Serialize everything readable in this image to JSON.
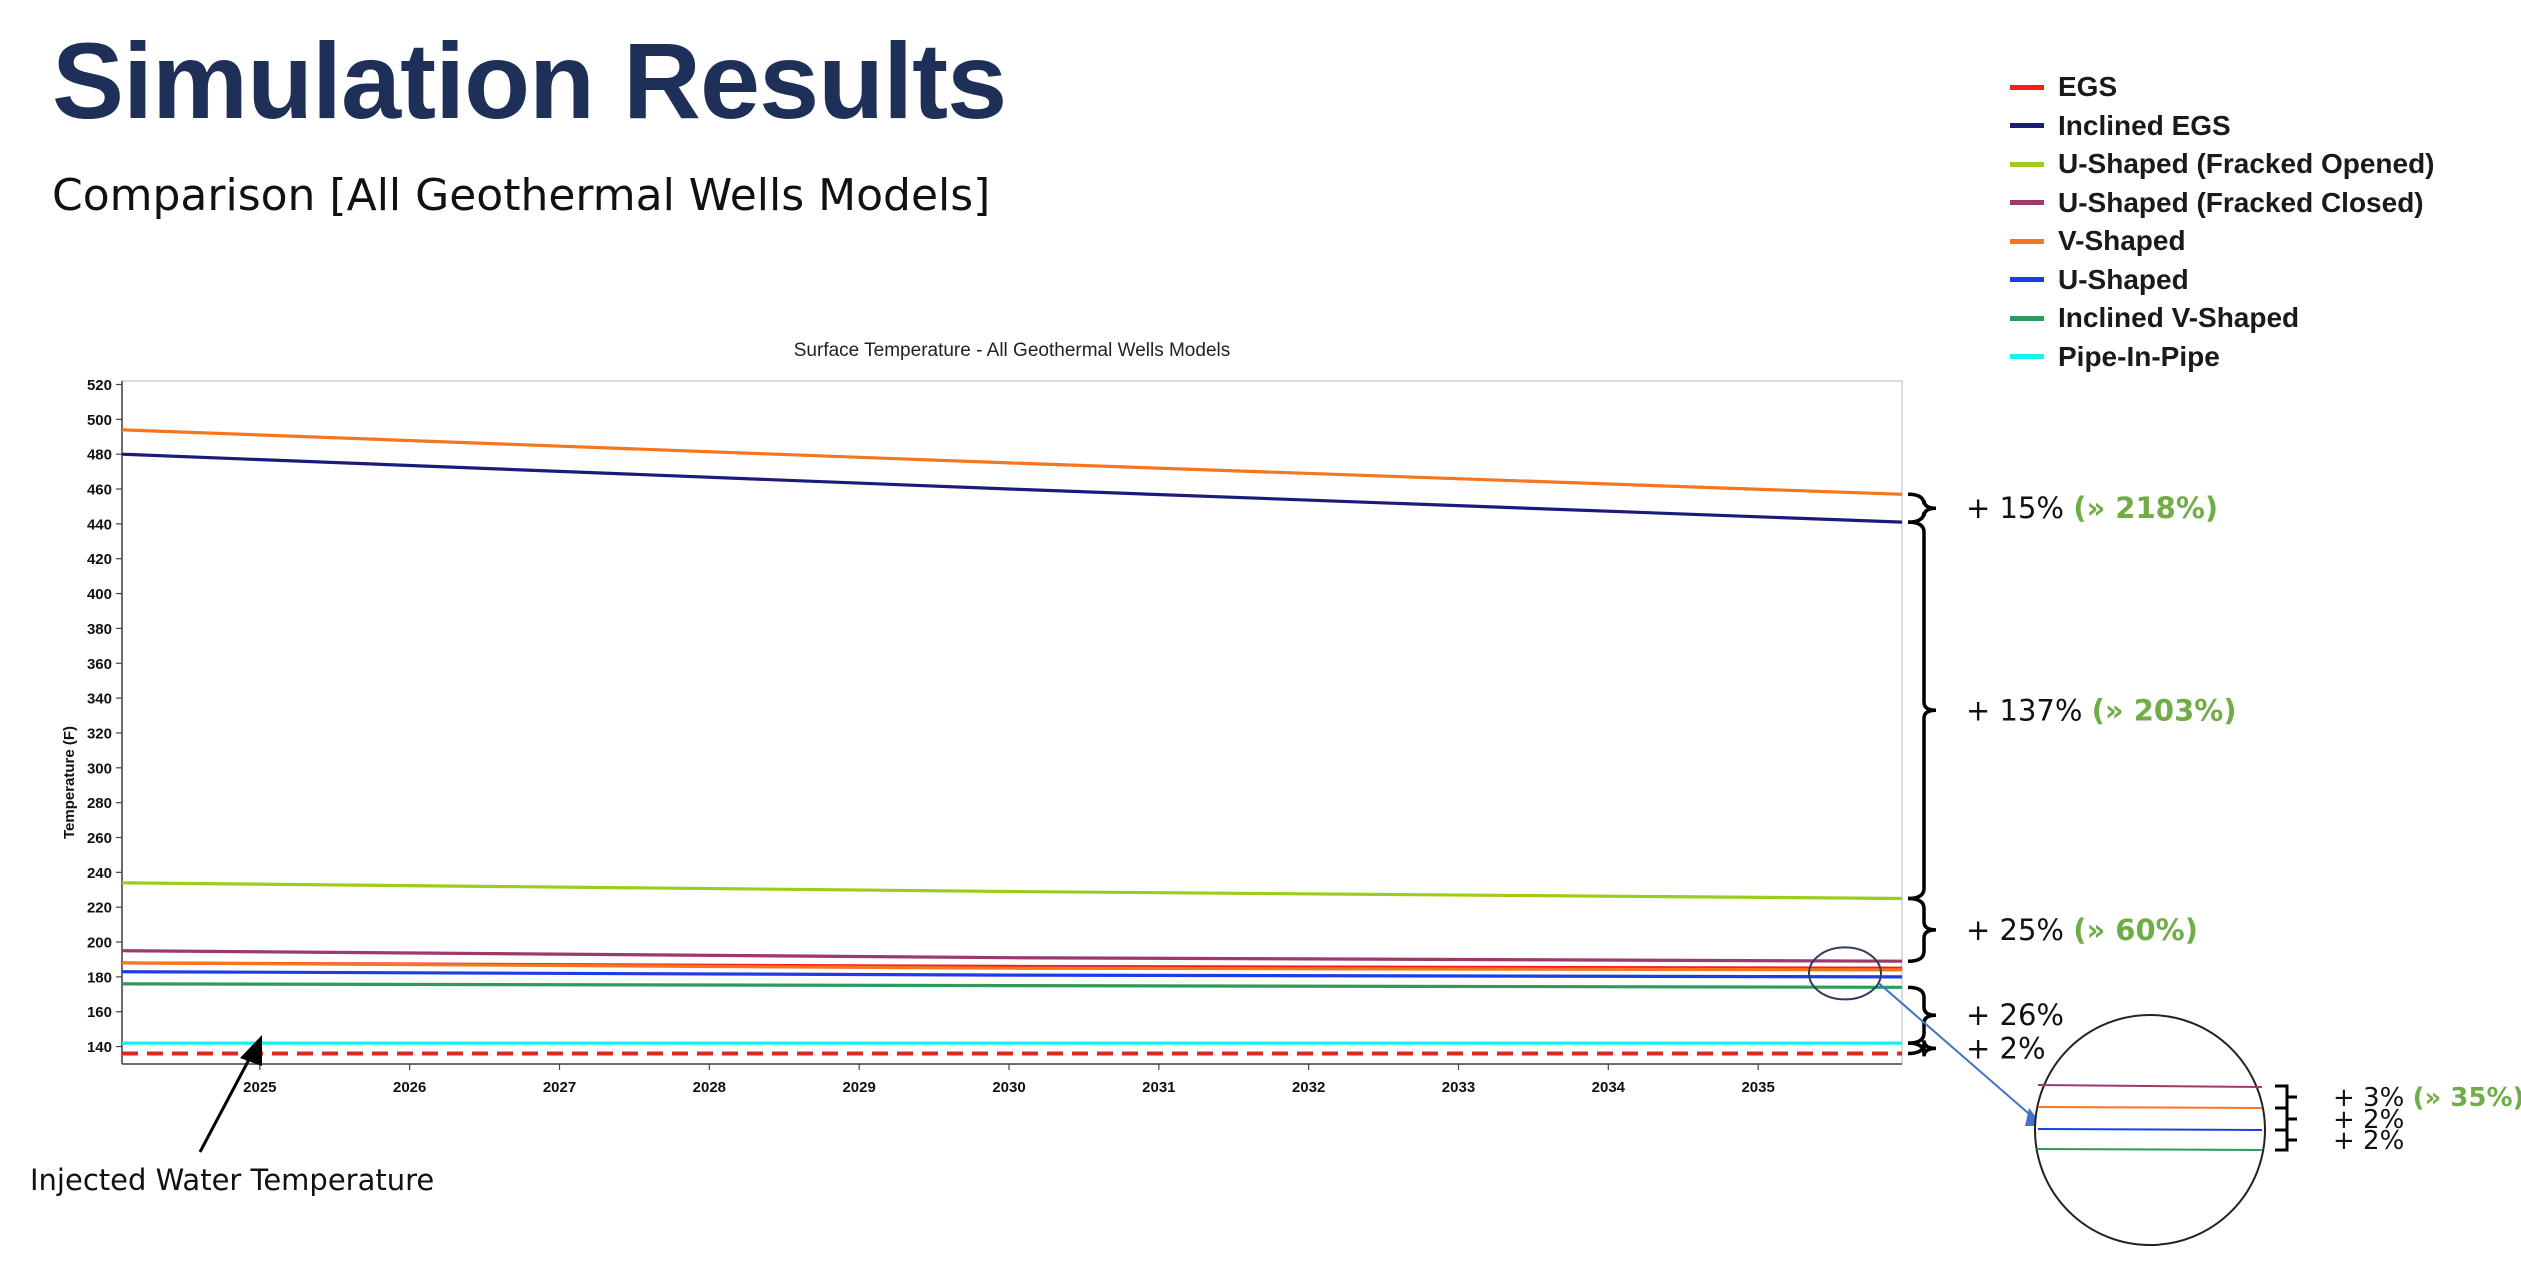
{
  "slide": {
    "title": "Simulation Results",
    "subtitle": "Comparison [All Geothermal Wells Models]"
  },
  "colors": {
    "title": "#1f3058",
    "annotation_green": "#70ad47",
    "EGS": "#ff1a1a",
    "Inclined EGS": "#1b1b7a",
    "U-Shaped (Fracked Opened)": "#9ccc1c",
    "U-Shaped (Fracked Closed)": "#9c3a6e",
    "V-Shaped": "#f5761f",
    "U-Shaped": "#1e3ce6",
    "Inclined V-Shaped": "#2e9a5e",
    "Pipe-In-Pipe": "#19f0f0",
    "injected_water": "#e0281e"
  },
  "legend": [
    {
      "name": "EGS"
    },
    {
      "name": "Inclined EGS"
    },
    {
      "name": "U-Shaped (Fracked Opened)"
    },
    {
      "name": "U-Shaped (Fracked Closed)"
    },
    {
      "name": "V-Shaped"
    },
    {
      "name": "U-Shaped"
    },
    {
      "name": "Inclined V-Shaped"
    },
    {
      "name": "Pipe-In-Pipe"
    }
  ],
  "chart_data": {
    "type": "line",
    "title": "Surface Temperature - All Geothermal Wells Models",
    "xlabel": "",
    "ylabel": "Temperature (F)",
    "xlim": [
      2024.08,
      2035.96
    ],
    "ylim": [
      130,
      522
    ],
    "y_ticks": [
      140,
      160,
      180,
      200,
      220,
      240,
      260,
      280,
      300,
      320,
      340,
      360,
      380,
      400,
      420,
      440,
      460,
      480,
      500,
      520
    ],
    "x_ticks": [
      2025,
      2026,
      2027,
      2028,
      2029,
      2030,
      2031,
      2032,
      2033,
      2034,
      2035
    ],
    "grid": false,
    "legend_position": "top-right",
    "series": [
      {
        "name": "V-Shaped",
        "x": [
          2024.08,
          2030,
          2035.96
        ],
        "values": [
          494,
          475,
          457
        ]
      },
      {
        "name": "Inclined EGS",
        "x": [
          2024.08,
          2030,
          2035.96
        ],
        "values": [
          480,
          460,
          441
        ]
      },
      {
        "name": "U-Shaped (Fracked Opened)",
        "x": [
          2024.08,
          2030,
          2035.96
        ],
        "values": [
          234,
          229,
          225
        ]
      },
      {
        "name": "U-Shaped (Fracked Closed)",
        "x": [
          2024.08,
          2030,
          2035.96
        ],
        "values": [
          195,
          191,
          189
        ]
      },
      {
        "name": "EGS",
        "x": [
          2024.08,
          2030,
          2035.96
        ],
        "values": [
          188,
          186,
          185
        ]
      },
      {
        "name": "V-Shaped",
        "x": [
          2024.08,
          2030,
          2035.96
        ],
        "values": [
          188,
          185,
          184
        ]
      },
      {
        "name": "U-Shaped",
        "x": [
          2024.08,
          2030,
          2035.96
        ],
        "values": [
          183,
          181,
          180
        ]
      },
      {
        "name": "Inclined V-Shaped",
        "x": [
          2024.08,
          2030,
          2035.96
        ],
        "values": [
          176,
          175,
          174
        ]
      },
      {
        "name": "Pipe-In-Pipe",
        "x": [
          2024.08,
          2030,
          2035.96
        ],
        "values": [
          142,
          142,
          142
        ]
      },
      {
        "name": "Injected Water Temperature",
        "x": [
          2024.08,
          2035.96
        ],
        "values": [
          136,
          136
        ]
      }
    ],
    "annotations": {
      "injected_label": "Injected Water Temperature",
      "brackets": [
        {
          "from": 441,
          "to": 457,
          "text": "+ 15%",
          "note": "(» 218%)"
        },
        {
          "from": 225,
          "to": 441,
          "text": "+ 137%",
          "note": "(» 203%)"
        },
        {
          "from": 189,
          "to": 225,
          "text": "+ 25%",
          "note": "(» 60%)"
        },
        {
          "from": 142,
          "to": 174,
          "text": "+ 26%",
          "note": ""
        },
        {
          "from": 136,
          "to": 142,
          "text": "+ 2%",
          "note": ""
        }
      ],
      "zoom_brackets": [
        {
          "text": "+ 3%",
          "note": "(» 35%)"
        },
        {
          "text": "+ 2%",
          "note": ""
        },
        {
          "text": "+ 2%",
          "note": ""
        }
      ]
    }
  }
}
